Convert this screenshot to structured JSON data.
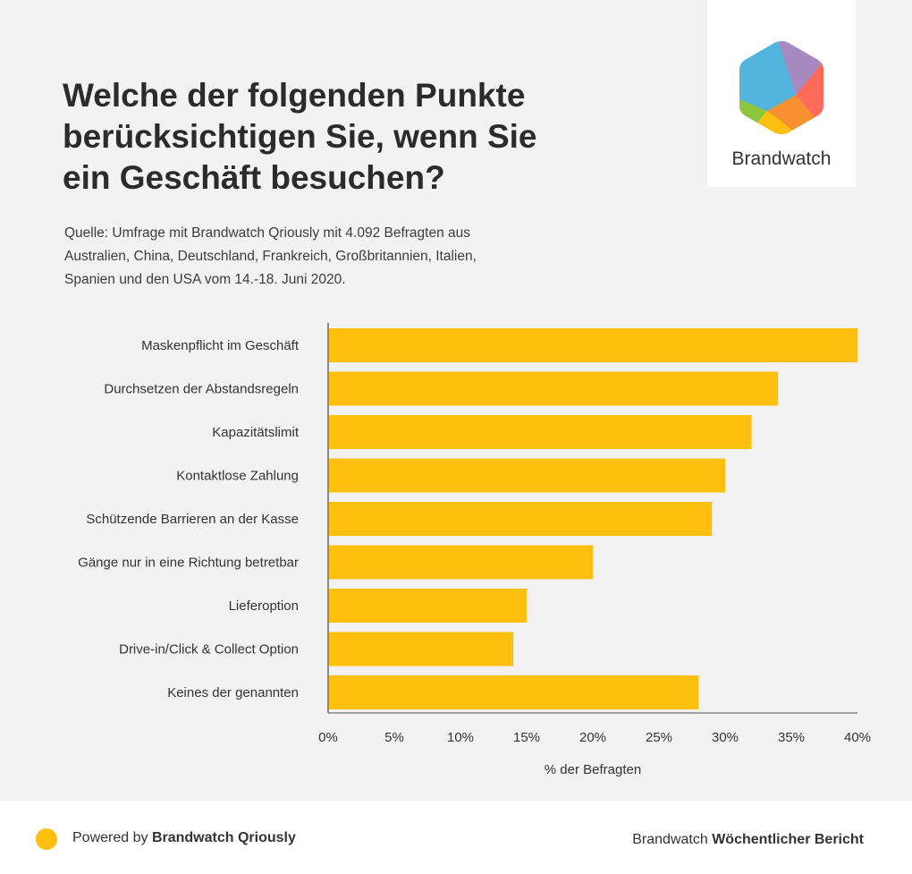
{
  "header": {
    "title_lines": [
      "Welche der folgenden Punkte",
      "berücksichtigen Sie, wenn Sie",
      "ein Geschäft besuchen?"
    ],
    "source_lines": [
      "Quelle: Umfrage mit Brandwatch Qriously mit 4.092 Befragten aus",
      "Australien, China, Deutschland, Frankreich, Großbritannien, Italien,",
      "Spanien und den USA vom 14.-18. Juni 2020."
    ]
  },
  "logo": {
    "text": "Brandwatch",
    "icon": "brandwatch-hexagon-icon"
  },
  "colors": {
    "bar": "#ffbf0f",
    "axis": "#888888",
    "text": "#333333",
    "accent": "#ffbf0f"
  },
  "chart_data": {
    "type": "bar",
    "orientation": "horizontal",
    "categories": [
      "Maskenpflicht im Geschäft",
      "Durchsetzen der Abstandsregeln",
      "Kapazitätslimit",
      "Kontaktlose Zahlung",
      "Schützende Barrieren an der Kasse",
      "Gänge nur in eine Richtung betretbar",
      "Lieferoption",
      "Drive-in/Click & Collect Option",
      "Keines der genannten"
    ],
    "values": [
      40,
      34,
      32,
      30,
      29,
      20,
      15,
      14,
      28
    ],
    "xlabel": "% der Befragten",
    "ylabel": "",
    "xlim": [
      0,
      40
    ],
    "xticks": [
      0,
      5,
      10,
      15,
      20,
      25,
      30,
      35,
      40
    ],
    "xtick_labels": [
      "0%",
      "5%",
      "10%",
      "15%",
      "20%",
      "25%",
      "30%",
      "35%",
      "40%"
    ],
    "grid": false,
    "legend": "none"
  },
  "footer": {
    "powered_prefix": "Powered by ",
    "powered_brand": "Brandwatch Qriously",
    "report_prefix": "Brandwatch ",
    "report_name": "Wöchentlicher Bericht"
  }
}
